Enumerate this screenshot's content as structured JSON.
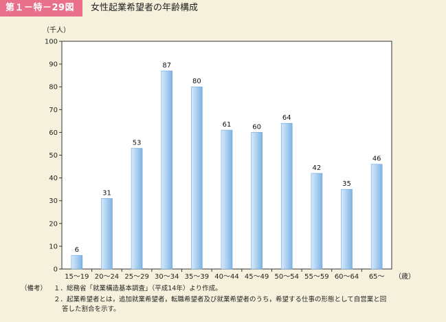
{
  "header": {
    "figure_label": "第１－特－29図",
    "title": "女性起業希望者の年齢構成"
  },
  "chart_data": {
    "type": "bar",
    "title": "女性起業希望者の年齢構成",
    "ylabel": "（千人）",
    "xlabel": "（歳）",
    "categories": [
      "15～19",
      "20～24",
      "25～29",
      "30～34",
      "35～39",
      "40～44",
      "45～49",
      "50～54",
      "55～59",
      "60～64",
      "65～"
    ],
    "values": [
      6,
      31,
      53,
      87,
      80,
      61,
      60,
      64,
      42,
      35,
      46
    ],
    "ylim": [
      0,
      100
    ],
    "yticks": [
      0,
      10,
      20,
      30,
      40,
      50,
      60,
      70,
      80,
      90,
      100
    ],
    "grid": false,
    "bar_color": "#a7cdef"
  },
  "notes": {
    "label": "（備考）",
    "items": [
      "１．総務省「就業構造基本調査」（平成14年）より作成。",
      "２．起業希望者とは，追加就業希望者，転職希望者及び就業希望者のうち，希望する仕事の形態として自営業と回",
      "答した割合を示す。"
    ]
  }
}
